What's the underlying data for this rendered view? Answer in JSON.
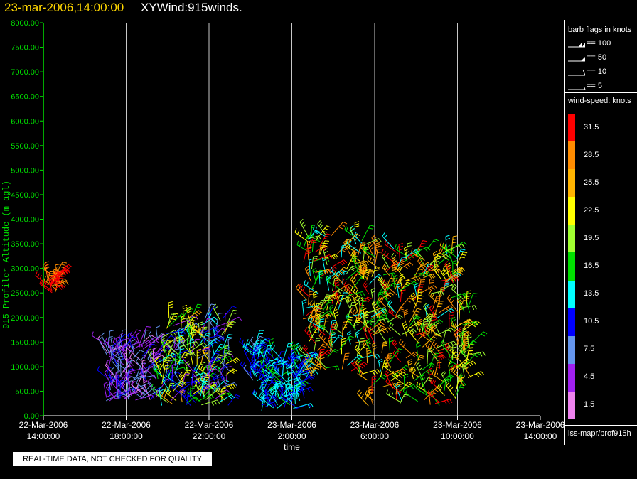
{
  "header": {
    "datetime": "23-mar-2006,14:00:00",
    "product": "XYWind:915winds."
  },
  "notice": "REAL-TIME DATA, NOT CHECKED FOR QUALITY",
  "legend": {
    "barb_title": "barb flags in knots",
    "barbs": [
      {
        "label": "== 100",
        "kind": "double-flag"
      },
      {
        "label": "== 50",
        "kind": "flag"
      },
      {
        "label": "== 10",
        "kind": "full-barb"
      },
      {
        "label": "== 5",
        "kind": "half-barb"
      }
    ],
    "speed_title": "wind-speed: knots",
    "speed_levels": [
      {
        "label": "31.5",
        "color": "#ff0000"
      },
      {
        "label": "28.5",
        "color": "#ff8c00"
      },
      {
        "label": "25.5",
        "color": "#ffb400"
      },
      {
        "label": "22.5",
        "color": "#ffff00"
      },
      {
        "label": "19.5",
        "color": "#a0ff30"
      },
      {
        "label": "16.5",
        "color": "#00e000"
      },
      {
        "label": "13.5",
        "color": "#00ffff"
      },
      {
        "label": "10.5",
        "color": "#0000ff"
      },
      {
        "label": "7.5",
        "color": "#6495ed"
      },
      {
        "label": "4.5",
        "color": "#a020f0"
      },
      {
        "label": "1.5",
        "color": "#ee82ee"
      }
    ],
    "source": "iss-mapr/prof915h"
  },
  "chart_data": {
    "type": "scatter",
    "title": "",
    "xlabel": "time",
    "ylabel": "915 Profiler Altitude (m agl)",
    "y_axis_color": "#00e000",
    "ylim": [
      0,
      8000
    ],
    "y_ticks": [
      "0.00",
      "500.00",
      "1000.00",
      "1500.00",
      "2000.00",
      "2500.00",
      "3000.00",
      "3500.00",
      "4000.00",
      "4500.00",
      "5000.00",
      "5500.00",
      "6000.00",
      "6500.00",
      "7000.00",
      "7500.00",
      "8000.00"
    ],
    "xlim_hours_from_start": [
      0,
      24
    ],
    "x_ticks": [
      {
        "date": "22-Mar-2006",
        "time": "14:00:00"
      },
      {
        "date": "22-Mar-2006",
        "time": "18:00:00"
      },
      {
        "date": "22-Mar-2006",
        "time": "22:00:00"
      },
      {
        "date": "23-Mar-2006",
        "time": "2:00:00"
      },
      {
        "date": "23-Mar-2006",
        "time": "6:00:00"
      },
      {
        "date": "23-Mar-2006",
        "time": "10:00:00"
      },
      {
        "date": "23-Mar-2006",
        "time": "14:00:00"
      }
    ],
    "grid": "vertical lines at labeled time ticks",
    "wind_clusters": [
      {
        "start": "22-Mar-2006 14:10",
        "end": "22-Mar-2006 14:40",
        "alt_range_m": [
          2500,
          2900
        ],
        "speed_kts": [
          28,
          33
        ]
      },
      {
        "start": "22-Mar-2006 17:00",
        "end": "22-Mar-2006 19:30",
        "alt_range_m": [
          300,
          1500
        ],
        "speed_kts": [
          2,
          10
        ]
      },
      {
        "start": "22-Mar-2006 19:30",
        "end": "22-Mar-2006 23:00",
        "alt_range_m": [
          200,
          2000
        ],
        "speed_kts": [
          3,
          25
        ]
      },
      {
        "start": "23-Mar-2006 00:00",
        "end": "23-Mar-2006 00:30",
        "alt_range_m": [
          700,
          1400
        ],
        "speed_kts": [
          8,
          14
        ]
      },
      {
        "start": "23-Mar-2006 00:30",
        "end": "23-Mar-2006 02:40",
        "alt_range_m": [
          100,
          1200
        ],
        "speed_kts": [
          9,
          16
        ]
      },
      {
        "start": "23-Mar-2006 02:30",
        "end": "23-Mar-2006 05:30",
        "alt_range_m": [
          800,
          3700
        ],
        "speed_kts": [
          12,
          32
        ]
      },
      {
        "start": "23-Mar-2006 05:30",
        "end": "23-Mar-2006 10:00",
        "alt_range_m": [
          200,
          3400
        ],
        "speed_kts": [
          14,
          32
        ]
      },
      {
        "start": "23-Mar-2006 10:00",
        "end": "23-Mar-2006 10:40",
        "alt_range_m": [
          600,
          2400
        ],
        "speed_kts": [
          16,
          28
        ]
      }
    ]
  }
}
